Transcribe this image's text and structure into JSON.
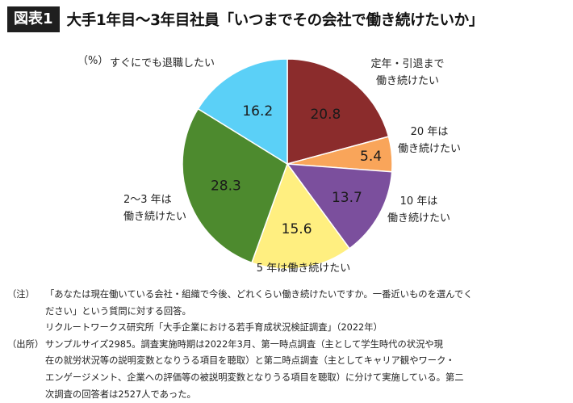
{
  "figure_label": "図表1",
  "title": "大手1年目〜3年目社員「いつまでその会社で働き続けたいか」",
  "unit_label": "（%）",
  "chart_data": {
    "type": "pie",
    "unit": "%",
    "slices": [
      {
        "label": [
          "定年・引退まで",
          "働き続けたい"
        ],
        "value": 20.8,
        "color": "#8b2c2c"
      },
      {
        "label": [
          "20 年は",
          "働き続けたい"
        ],
        "value": 5.4,
        "color": "#f9a55a"
      },
      {
        "label": [
          "10 年は",
          "働き続けたい"
        ],
        "value": 13.7,
        "color": "#7b4f9d"
      },
      {
        "label": [
          "5 年は働き続けたい"
        ],
        "value": 15.6,
        "color": "#ffef80"
      },
      {
        "label": [
          "2〜3 年は",
          "働き続けたい"
        ],
        "value": 28.3,
        "color": "#4d8a2e"
      },
      {
        "label": [
          "すぐにでも退職したい"
        ],
        "value": 16.2,
        "color": "#5bd0f7"
      }
    ]
  },
  "notes": [
    {
      "tag": "（注）",
      "lines": [
        "「あなたは現在働いている会社・組織で今後、どれくらい働き続けたいですか。一番近いものを選んでく",
        "ださい」という質問に対する回答。",
        "リクルートワークス研究所「大手企業における若手育成状況検証調査」（2022年）"
      ]
    },
    {
      "tag": "（出所）",
      "lines": [
        "サンプルサイズ2985。調査実施時期は2022年3月、第一時点調査（主として学生時代の状況や現",
        "在の就労状況等の説明変数となりうる項目を聴取）と第二時点調査（主としてキャリア観やワーク・",
        "エンゲージメント、企業への評価等の被説明変数となりうる項目を聴取）に分けて実施している。第二",
        "次調査の回答者は2527人であった。"
      ]
    }
  ]
}
